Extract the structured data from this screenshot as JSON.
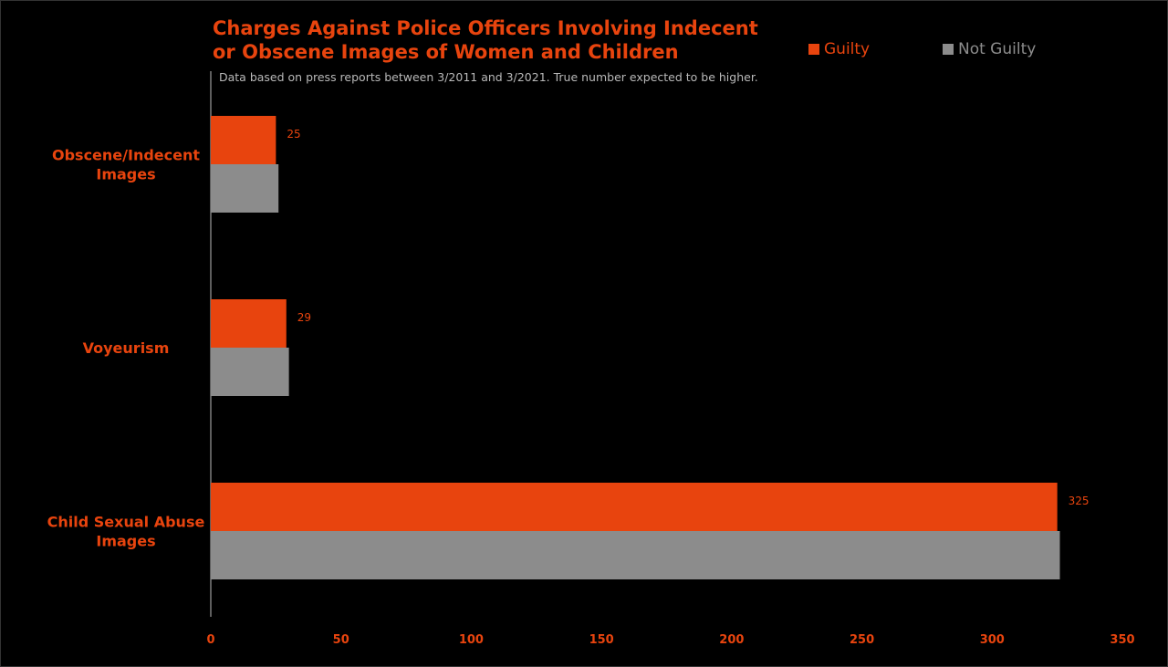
{
  "chart_data": {
    "type": "bar",
    "orientation": "horizontal",
    "title": "Charges Against Police Officers Involving Indecent or Obscene Images of Women and Children",
    "title_lines": [
      "Charges Against Police Officers Involving Indecent",
      "or Obscene Images of Women and Children"
    ],
    "subtitle": "Data based on press reports between 3/2011 and 3/2021. True number expected to be higher.",
    "categories": [
      {
        "lines": [
          "Obscene/Indecent",
          "Images"
        ]
      },
      {
        "lines": [
          "Voyeurism"
        ]
      },
      {
        "lines": [
          "Child Sexual Abuse",
          "Images"
        ]
      }
    ],
    "series": [
      {
        "name": "Guilty",
        "color": "#e8440e",
        "values": [
          25,
          29,
          325
        ],
        "data_labels": [
          "25",
          "29",
          "325"
        ]
      },
      {
        "name": "Not Guilty",
        "color": "#8c8c8c",
        "values": [
          26,
          30,
          326
        ]
      }
    ],
    "xlim": [
      0,
      350
    ],
    "xticks": [
      "0",
      "50",
      "100",
      "150",
      "200",
      "250",
      "300",
      "350"
    ],
    "xtick_values": [
      0,
      50,
      100,
      150,
      200,
      250,
      300,
      350
    ],
    "legend_position": "top-right",
    "grid": false,
    "background": "#000000"
  }
}
